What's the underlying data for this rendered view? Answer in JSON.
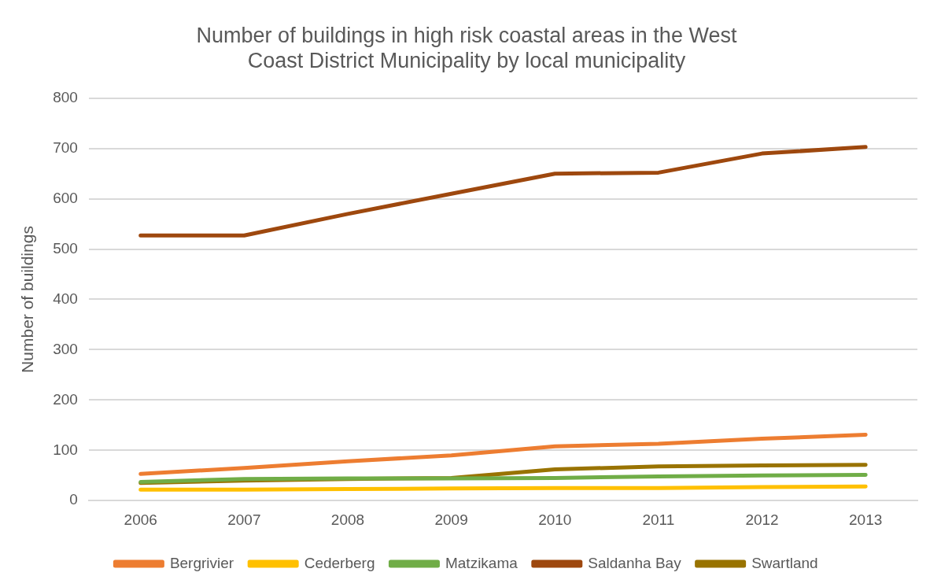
{
  "chart_data": {
    "type": "line",
    "title": "Number of buildings in high risk coastal areas in the West Coast District Municipality by local municipality",
    "ylabel": "Number of buildings",
    "categories": [
      "2006",
      "2007",
      "2008",
      "2009",
      "2010",
      "2011",
      "2012",
      "2013"
    ],
    "series": [
      {
        "name": "Bergrivier",
        "color": "#ed7d31",
        "values": [
          53,
          65,
          78,
          90,
          108,
          113,
          123,
          131
        ]
      },
      {
        "name": "Cederberg",
        "color": "#ffc000",
        "values": [
          22,
          22,
          23,
          24,
          25,
          25,
          27,
          28
        ]
      },
      {
        "name": "Matzikama",
        "color": "#70ad47",
        "values": [
          37,
          43,
          44,
          44,
          45,
          48,
          50,
          51
        ]
      },
      {
        "name": "Saldanha Bay",
        "color": "#9e480e",
        "values": [
          527,
          527,
          570,
          610,
          650,
          652,
          690,
          703
        ]
      },
      {
        "name": "Swartland",
        "color": "#997300",
        "values": [
          35,
          40,
          43,
          45,
          62,
          68,
          70,
          71
        ]
      }
    ],
    "ylim": [
      0,
      800
    ],
    "yticks": [
      0,
      100,
      200,
      300,
      400,
      500,
      600,
      700,
      800
    ],
    "grid": "y",
    "legend": "bottom",
    "marker": "none",
    "line_style": "solid"
  }
}
